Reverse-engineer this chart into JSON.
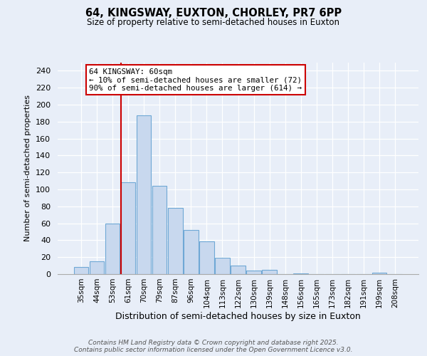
{
  "title1": "64, KINGSWAY, EUXTON, CHORLEY, PR7 6PP",
  "title2": "Size of property relative to semi-detached houses in Euxton",
  "xlabel": "Distribution of semi-detached houses by size in Euxton",
  "ylabel": "Number of semi-detached properties",
  "bar_labels": [
    "35sqm",
    "44sqm",
    "53sqm",
    "61sqm",
    "70sqm",
    "79sqm",
    "87sqm",
    "96sqm",
    "104sqm",
    "113sqm",
    "122sqm",
    "130sqm",
    "139sqm",
    "148sqm",
    "156sqm",
    "165sqm",
    "173sqm",
    "182sqm",
    "191sqm",
    "199sqm",
    "208sqm"
  ],
  "bar_values": [
    8,
    15,
    60,
    108,
    187,
    104,
    78,
    52,
    39,
    19,
    10,
    4,
    5,
    0,
    1,
    0,
    0,
    0,
    0,
    2,
    0
  ],
  "bar_color": "#c8d8ee",
  "bar_edge_color": "#6fa8d5",
  "vline_index": 3,
  "vline_color": "#cc0000",
  "annotation_line1": "64 KINGSWAY: 60sqm",
  "annotation_line2": "← 10% of semi-detached houses are smaller (72)",
  "annotation_line3": "90% of semi-detached houses are larger (614) →",
  "annotation_box_facecolor": "#ffffff",
  "annotation_box_edgecolor": "#cc0000",
  "ylim": [
    0,
    250
  ],
  "yticks": [
    0,
    20,
    40,
    60,
    80,
    100,
    120,
    140,
    160,
    180,
    200,
    220,
    240
  ],
  "footer": "Contains HM Land Registry data © Crown copyright and database right 2025.\nContains public sector information licensed under the Open Government Licence v3.0.",
  "bg_color": "#e8eef8"
}
